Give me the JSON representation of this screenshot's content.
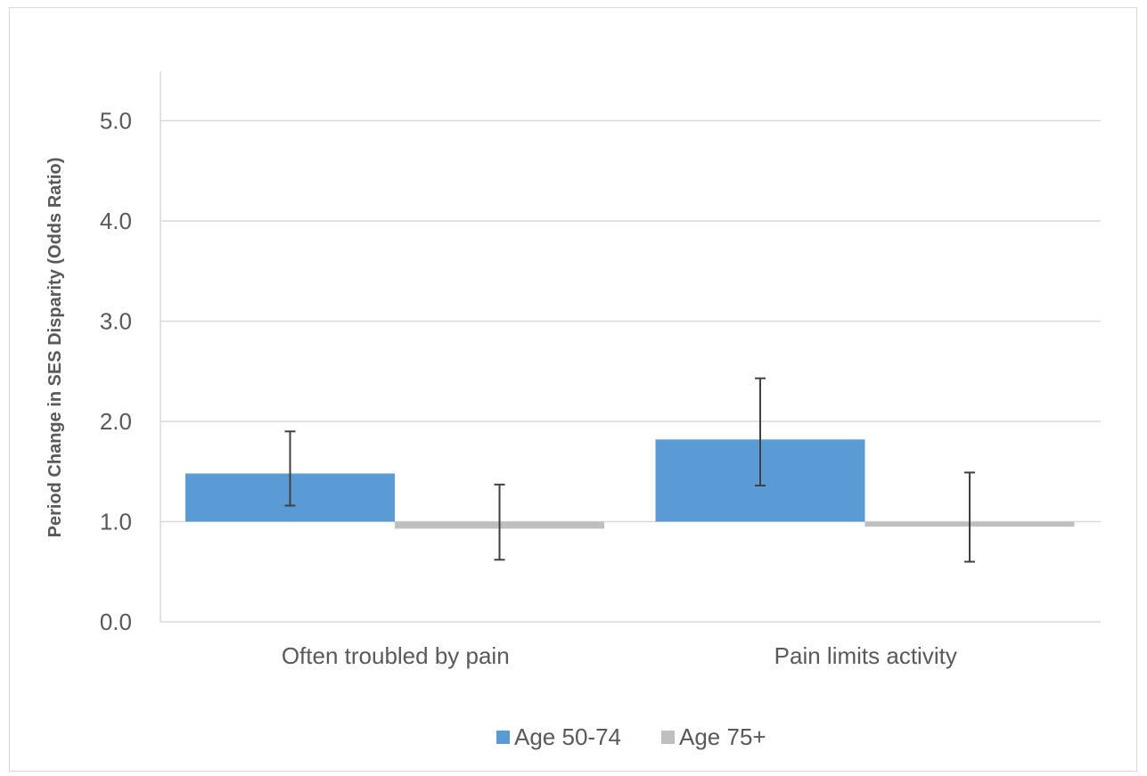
{
  "chart_data": {
    "type": "bar",
    "title": "",
    "xlabel": "",
    "ylabel": "Period Change in SES Disparity (Odds Ratio)",
    "ylim": [
      0,
      5.5
    ],
    "baseline": 1.0,
    "y_ticks": [
      "0.0",
      "1.0",
      "2.0",
      "3.0",
      "4.0",
      "5.0"
    ],
    "y_tick_values": [
      0,
      1,
      2,
      3,
      4,
      5
    ],
    "categories": [
      "Often troubled by pain",
      "Pain limits activity"
    ],
    "series": [
      {
        "name": "Age 50-74",
        "color": "#5b9bd5",
        "values": [
          1.48,
          1.82
        ],
        "error_low": [
          1.16,
          1.36
        ],
        "error_high": [
          1.9,
          2.43
        ]
      },
      {
        "name": "Age 75+",
        "color": "#bfbfbf",
        "values": [
          0.93,
          0.95
        ],
        "error_low": [
          0.62,
          0.6
        ],
        "error_high": [
          1.37,
          1.49
        ]
      }
    ],
    "grid": true,
    "legend_position": "bottom"
  }
}
